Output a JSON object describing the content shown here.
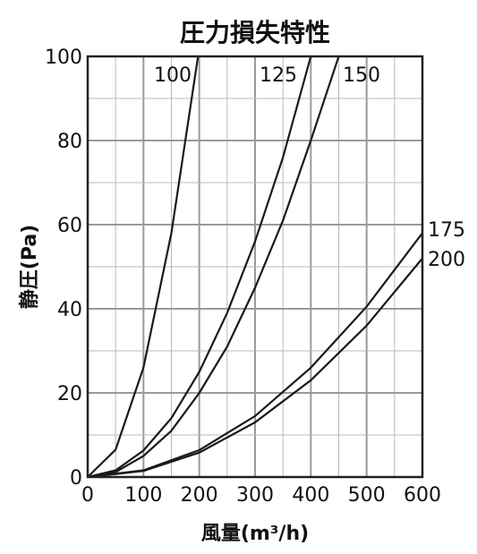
{
  "chart_data": {
    "type": "line",
    "title": "圧力損失特性",
    "xlabel": "風量(m³/h)",
    "ylabel": "静圧(Pa)",
    "xlim": [
      0,
      600
    ],
    "ylim": [
      0,
      100
    ],
    "x_ticks": [
      "0",
      "100",
      "200",
      "300",
      "400",
      "500",
      "600"
    ],
    "y_ticks": [
      "0",
      "20",
      "40",
      "60",
      "80",
      "100"
    ],
    "grid": true,
    "series": [
      {
        "name": "100",
        "x": [
          0,
          50,
          100,
          150,
          200
        ],
        "y": [
          0,
          6.5,
          26,
          58,
          102
        ]
      },
      {
        "name": "125",
        "x": [
          0,
          50,
          100,
          150,
          200,
          250,
          300,
          350,
          400
        ],
        "y": [
          0,
          1.6,
          6.3,
          14,
          25,
          39,
          56,
          76,
          100
        ]
      },
      {
        "name": "150",
        "x": [
          0,
          50,
          100,
          150,
          200,
          250,
          300,
          350,
          400,
          450
        ],
        "y": [
          0,
          1.2,
          5,
          11,
          20,
          31,
          45,
          61,
          80,
          100
        ]
      },
      {
        "name": "175",
        "x": [
          0,
          100,
          200,
          300,
          400,
          500,
          600
        ],
        "y": [
          0,
          1.6,
          6.4,
          14.5,
          26,
          40.5,
          58
        ]
      },
      {
        "name": "200",
        "x": [
          0,
          100,
          200,
          300,
          400,
          500,
          600
        ],
        "y": [
          0,
          1.45,
          5.8,
          13,
          23,
          36,
          52
        ]
      }
    ]
  }
}
